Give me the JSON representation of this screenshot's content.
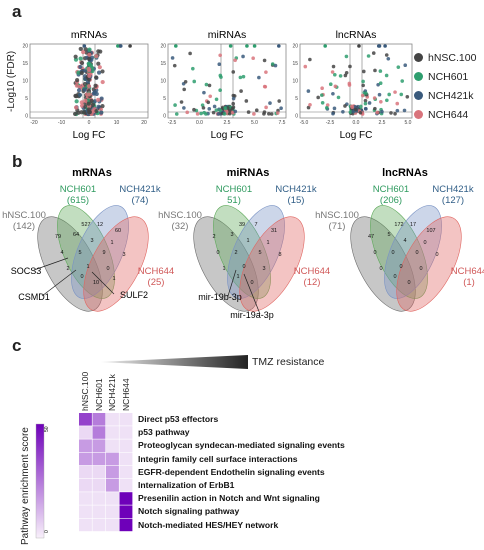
{
  "panel_a": {
    "label": "a",
    "xlabel": "Log FC",
    "ylabel": "-Log10 (FDR)",
    "plots": [
      {
        "title": "mRNAs",
        "xticks": [
          "-20",
          "-10",
          "0",
          "10",
          "20"
        ],
        "yticks": [
          "0",
          "5",
          "10",
          "15",
          "20"
        ]
      },
      {
        "title": "miRNAs",
        "xticks": [
          "-2.5",
          "0.0",
          "2.5",
          "5.0",
          "7.5"
        ],
        "yticks": [
          "0",
          "5",
          "10",
          "15",
          "20"
        ]
      },
      {
        "title": "lncRNAs",
        "xticks": [
          "-5.0",
          "-2.5",
          "0.0",
          "2.5",
          "5.0"
        ],
        "yticks": [
          "0",
          "5",
          "10",
          "15",
          "20"
        ]
      }
    ],
    "legend": [
      {
        "label": "hNSC.100",
        "color": "#444444"
      },
      {
        "label": "NCH601",
        "color": "#2e9e6e"
      },
      {
        "label": "NCH421k",
        "color": "#3a5a7c"
      },
      {
        "label": "NCH644",
        "color": "#d9747c"
      }
    ]
  },
  "panel_b": {
    "label": "b",
    "vennA": {
      "title": "mRNAs",
      "sets": [
        "hNSC.100\n(142)",
        "NCH601\n(615)",
        "NCH421k\n(74)",
        "NCH644\n(25)"
      ],
      "numbers": [
        "527",
        "12",
        "60",
        "79",
        "64",
        "3",
        "1",
        "4",
        "5",
        "9",
        "3",
        "2",
        "1",
        "0",
        "10",
        "0",
        "1"
      ],
      "genes": [
        "SOCS3",
        "CSMD1",
        "SULF2"
      ]
    },
    "vennB": {
      "title": "miRNAs",
      "sets": [
        "hNSC.100\n(32)",
        "NCH601\n51)",
        "NCH421k\n(15)",
        "NCH644\n(12)"
      ],
      "numbers": [
        "39",
        "7",
        "31",
        "2",
        "3",
        "1",
        "1",
        "0",
        "2",
        "5",
        "8",
        "1",
        "0",
        "3",
        "0",
        "1"
      ],
      "genes": [
        "mir-19b-3p",
        "mir-19a-3p"
      ]
    },
    "vennC": {
      "title": "lncRNAs",
      "sets": [
        "hNSC.100\n(71)",
        "NCH601\n(206)",
        "NCH421k\n(127)",
        "NCH644\n(1)"
      ],
      "numbers": [
        "172",
        "17",
        "107",
        "47",
        "5",
        "4",
        "0",
        "0",
        "0",
        "0",
        "0",
        "0",
        "0",
        "0",
        "0",
        "0"
      ]
    }
  },
  "panel_c": {
    "label": "c",
    "gradient_label": "TMZ resistance",
    "colorbar_label": "Pathway enrichment score",
    "colorbar_ticks": [
      "0",
      "50"
    ],
    "columns": [
      "hNSC.100",
      "NCH601",
      "NCH421k",
      "NCH644"
    ],
    "pathways": [
      "Direct p53 effectors",
      "p53 pathway",
      "Proteoglycan syndecan-mediated signaling events",
      "Integrin family cell surface interactions",
      "EGFR-dependent Endothelin signaling events",
      "Internalization of ErbB1",
      "Presenilin action in Notch and Wnt signaling",
      "Notch signaling pathway",
      "Notch-mediated HES/HEY network"
    ],
    "matrix": [
      [
        45,
        30,
        4,
        4
      ],
      [
        6,
        30,
        4,
        4
      ],
      [
        22,
        22,
        4,
        4
      ],
      [
        22,
        22,
        22,
        4
      ],
      [
        6,
        6,
        22,
        4
      ],
      [
        6,
        6,
        22,
        4
      ],
      [
        4,
        4,
        4,
        62
      ],
      [
        4,
        4,
        4,
        62
      ],
      [
        4,
        4,
        4,
        62
      ]
    ],
    "scale_max": 62
  }
}
